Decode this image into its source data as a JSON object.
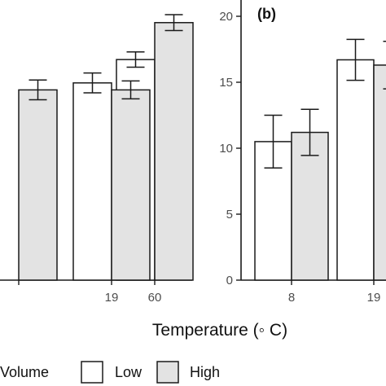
{
  "chart_data": [
    {
      "type": "bar",
      "panel_label": "",
      "categories": [
        "",
        "19",
        "60"
      ],
      "series": [
        {
          "name": "Low",
          "color": "#ffffff",
          "values": [
            null,
            14.95,
            16.72
          ],
          "error": [
            null,
            0.75,
            0.58
          ]
        },
        {
          "name": "High",
          "color": "#e3e3e3",
          "values": [
            14.42,
            14.42,
            19.52
          ],
          "error": [
            0.75,
            0.68,
            0.6
          ]
        }
      ],
      "xlabel": "Temperature (◦ C)",
      "ylim": [
        0,
        20
      ]
    },
    {
      "type": "bar",
      "panel_label": "(b)",
      "categories": [
        "8",
        "19"
      ],
      "series": [
        {
          "name": "Low",
          "color": "#ffffff",
          "values": [
            10.5,
            16.7
          ],
          "error": [
            2.0,
            1.55
          ]
        },
        {
          "name": "High",
          "color": "#e3e3e3",
          "values": [
            11.2,
            16.3
          ],
          "error": [
            1.75,
            1.8
          ]
        }
      ],
      "yticks": [
        "0",
        "5",
        "10",
        "15",
        "20"
      ],
      "ylim": [
        0,
        20
      ]
    }
  ],
  "legend": {
    "title": "Volume",
    "items": [
      {
        "label": "Low",
        "color": "#ffffff"
      },
      {
        "label": "High",
        "color": "#e3e3e3"
      }
    ]
  }
}
